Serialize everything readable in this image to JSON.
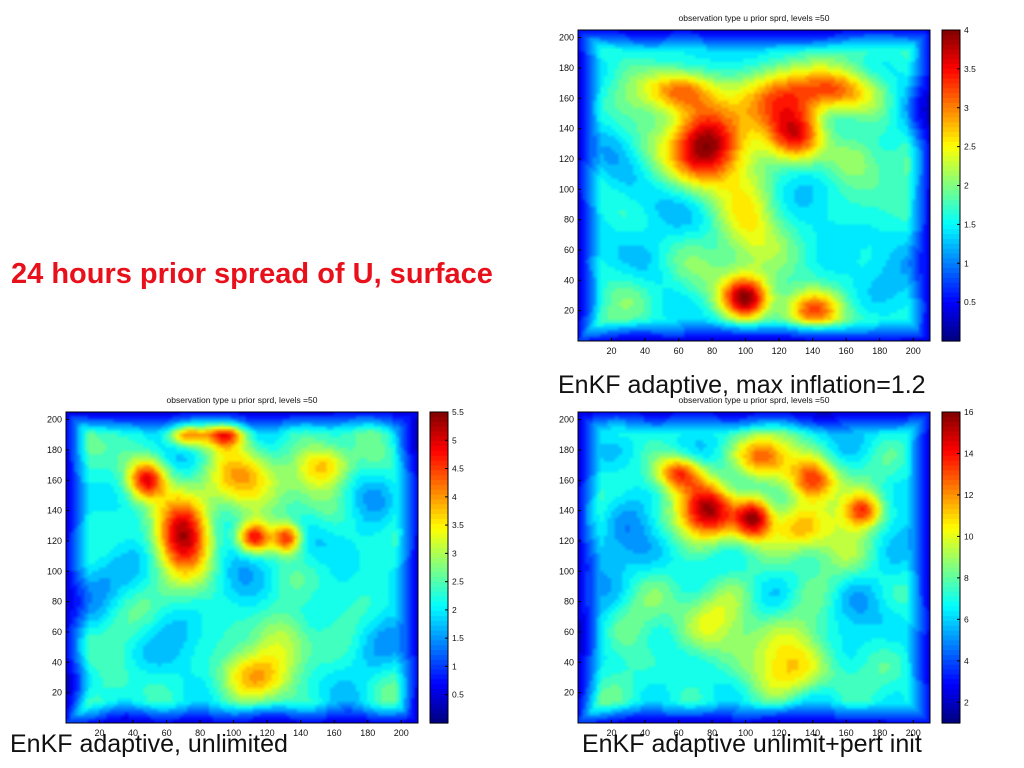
{
  "slide": {
    "title": "24 hours prior spread of U, surface",
    "title_color": "#e8101a"
  },
  "captions": {
    "top_right": "EnKF adaptive, max inflation=1.2",
    "bottom_left": "EnKF adaptive, unlimited",
    "bottom_right": "EnKF adaptive unlimit+pert init"
  },
  "chart_data": [
    {
      "type": "heatmap",
      "title": "observation type u prior sprd, levels =50",
      "caption": "EnKF adaptive, max inflation=1.2",
      "xlim": [
        0,
        210
      ],
      "ylim": [
        0,
        205
      ],
      "xticks": [
        "20",
        "40",
        "60",
        "80",
        "100",
        "120",
        "140",
        "160",
        "180",
        "200"
      ],
      "yticks": [
        "20",
        "40",
        "60",
        "80",
        "100",
        "120",
        "140",
        "160",
        "180",
        "200"
      ],
      "colorbar": {
        "min": 0,
        "max": 4,
        "ticks": [
          "0.5",
          "1",
          "1.5",
          "2",
          "2.5",
          "3",
          "3.5",
          "4"
        ]
      },
      "colormap": "jet",
      "contours": true,
      "hotspots": [
        {
          "x": 75,
          "y": 128,
          "peak": 4.0,
          "sx": 14,
          "sy": 18
        },
        {
          "x": 60,
          "y": 165,
          "peak": 3.2,
          "sx": 14,
          "sy": 10
        },
        {
          "x": 100,
          "y": 28,
          "peak": 3.8,
          "sx": 10,
          "sy": 10
        },
        {
          "x": 140,
          "y": 20,
          "peak": 3.1,
          "sx": 12,
          "sy": 9
        },
        {
          "x": 130,
          "y": 135,
          "peak": 3.4,
          "sx": 12,
          "sy": 12
        },
        {
          "x": 155,
          "y": 165,
          "peak": 3.1,
          "sx": 15,
          "sy": 10
        },
        {
          "x": 115,
          "y": 160,
          "peak": 2.8,
          "sx": 20,
          "sy": 15
        },
        {
          "x": 100,
          "y": 75,
          "peak": 2.4,
          "sx": 14,
          "sy": 30
        },
        {
          "x": 165,
          "y": 120,
          "peak": 2.3,
          "sx": 12,
          "sy": 12
        }
      ]
    },
    {
      "type": "heatmap",
      "title": "observation type u prior sprd, levels =50",
      "caption": "EnKF adaptive, unlimited",
      "xlim": [
        0,
        210
      ],
      "ylim": [
        0,
        205
      ],
      "xticks": [
        "20",
        "40",
        "60",
        "80",
        "100",
        "120",
        "140",
        "160",
        "180",
        "200"
      ],
      "yticks": [
        "20",
        "40",
        "60",
        "80",
        "100",
        "120",
        "140",
        "160",
        "180",
        "200"
      ],
      "colorbar": {
        "min": 0,
        "max": 5.5,
        "ticks": [
          "0.5",
          "1",
          "1.5",
          "2",
          "2.5",
          "3",
          "3.5",
          "4",
          "4.5",
          "5",
          "5.5"
        ]
      },
      "colormap": "jet",
      "contours": true,
      "hotspots": [
        {
          "x": 70,
          "y": 125,
          "peak": 5.0,
          "sx": 12,
          "sy": 18
        },
        {
          "x": 48,
          "y": 160,
          "peak": 4.6,
          "sx": 8,
          "sy": 9
        },
        {
          "x": 72,
          "y": 190,
          "peak": 4.3,
          "sx": 8,
          "sy": 6
        },
        {
          "x": 95,
          "y": 190,
          "peak": 4.2,
          "sx": 8,
          "sy": 6
        },
        {
          "x": 112,
          "y": 122,
          "peak": 4.6,
          "sx": 7,
          "sy": 7
        },
        {
          "x": 132,
          "y": 122,
          "peak": 4.5,
          "sx": 6,
          "sy": 7
        },
        {
          "x": 155,
          "y": 170,
          "peak": 4.0,
          "sx": 12,
          "sy": 10
        },
        {
          "x": 105,
          "y": 160,
          "peak": 3.6,
          "sx": 20,
          "sy": 15
        },
        {
          "x": 110,
          "y": 30,
          "peak": 3.6,
          "sx": 15,
          "sy": 12
        },
        {
          "x": 130,
          "y": 55,
          "peak": 3.2,
          "sx": 12,
          "sy": 15
        }
      ]
    },
    {
      "type": "heatmap",
      "title": "observation type u prior sprd, levels =50",
      "caption": "EnKF adaptive unlimit+pert init",
      "xlim": [
        0,
        210
      ],
      "ylim": [
        0,
        205
      ],
      "xticks": [
        "20",
        "40",
        "60",
        "80",
        "100",
        "120",
        "140",
        "160",
        "180",
        "200"
      ],
      "yticks": [
        "20",
        "40",
        "60",
        "80",
        "100",
        "120",
        "140",
        "160",
        "180",
        "200"
      ],
      "colorbar": {
        "min": 1,
        "max": 16,
        "ticks": [
          "2",
          "4",
          "6",
          "8",
          "10",
          "12",
          "14",
          "16"
        ]
      },
      "colormap": "jet",
      "contours": true,
      "hotspots": [
        {
          "x": 78,
          "y": 140,
          "peak": 15.0,
          "sx": 12,
          "sy": 14
        },
        {
          "x": 105,
          "y": 135,
          "peak": 15.0,
          "sx": 8,
          "sy": 10
        },
        {
          "x": 60,
          "y": 165,
          "peak": 13.0,
          "sx": 10,
          "sy": 8
        },
        {
          "x": 140,
          "y": 160,
          "peak": 13.5,
          "sx": 10,
          "sy": 10
        },
        {
          "x": 170,
          "y": 140,
          "peak": 12.5,
          "sx": 8,
          "sy": 8
        },
        {
          "x": 130,
          "y": 130,
          "peak": 12.0,
          "sx": 12,
          "sy": 12
        },
        {
          "x": 110,
          "y": 175,
          "peak": 12.0,
          "sx": 12,
          "sy": 10
        },
        {
          "x": 100,
          "y": 60,
          "peak": 9.5,
          "sx": 30,
          "sy": 20
        },
        {
          "x": 140,
          "y": 30,
          "peak": 9.5,
          "sx": 20,
          "sy": 12
        }
      ]
    }
  ]
}
